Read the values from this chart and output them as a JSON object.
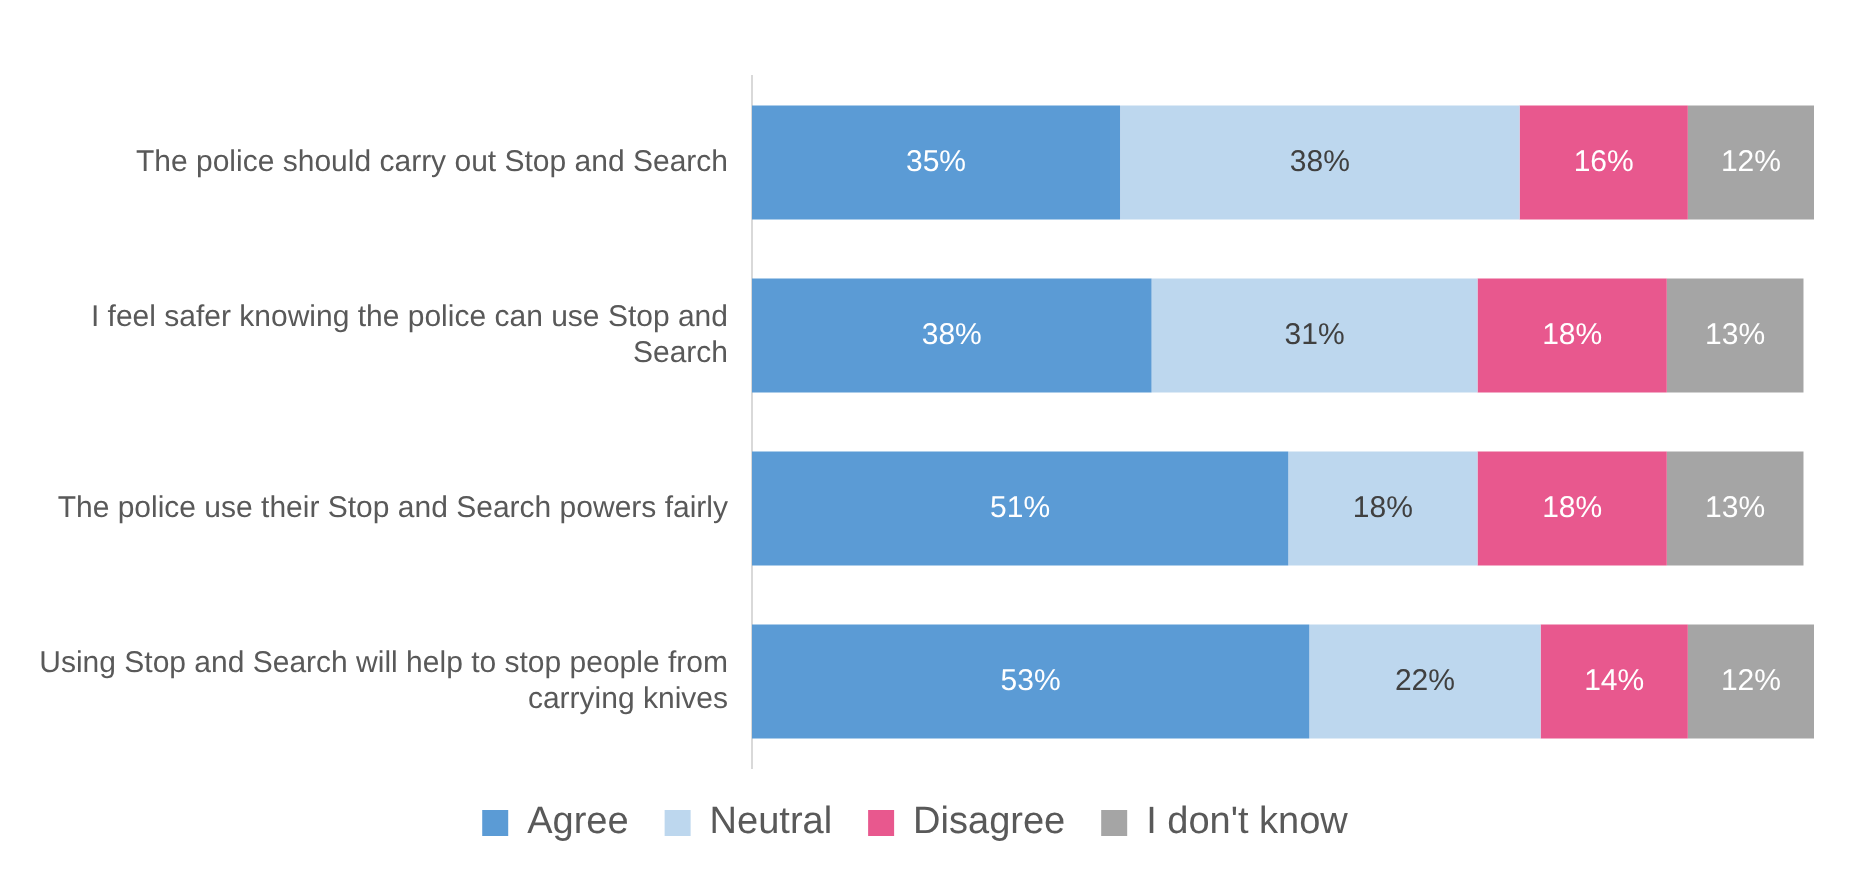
{
  "chart_data": {
    "type": "bar",
    "orientation": "horizontal",
    "stacked": true,
    "legend": "bottom",
    "grid": false,
    "categories": [
      "The police should carry out Stop and Search",
      "I feel safer knowing the police can use Stop and Search",
      "The police use their Stop and Search powers fairly",
      "Using Stop and Search will help to stop people from carrying knives"
    ],
    "series": [
      {
        "name": "Agree",
        "color": "#5b9bd5",
        "values": [
          35,
          38,
          51,
          53
        ],
        "value_labels": [
          "35%",
          "38%",
          "51%",
          "53%"
        ]
      },
      {
        "name": "Neutral",
        "color": "#bdd7ee",
        "values": [
          38,
          31,
          18,
          22
        ],
        "value_labels": [
          "38%",
          "31%",
          "18%",
          "22%"
        ]
      },
      {
        "name": "Disagree",
        "color": "#e8588e",
        "values": [
          16,
          18,
          18,
          14
        ],
        "value_labels": [
          "16%",
          "18%",
          "18%",
          "14%"
        ]
      },
      {
        "name": "I don't know",
        "color": "#a5a5a5",
        "values": [
          12,
          13,
          13,
          12
        ],
        "value_labels": [
          "12%",
          "13%",
          "13%",
          "12%"
        ]
      }
    ]
  }
}
